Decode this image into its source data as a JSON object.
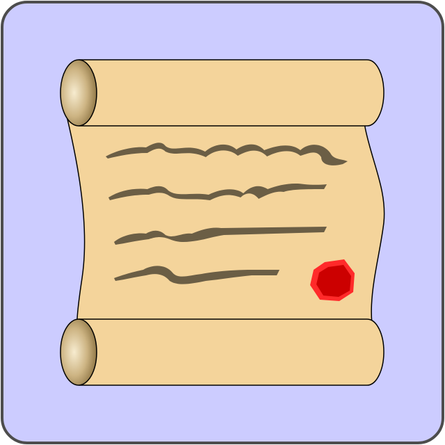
{
  "icon": {
    "name": "scroll-certificate-icon",
    "colors": {
      "background": "#ccccff",
      "border": "#4d4d4d",
      "parchment": "#f4d49b",
      "outline": "#000000",
      "script_ink": "#6b5e45",
      "roll_end_light": "#f7ecd0",
      "roll_end_dark": "#8a7140",
      "seal_outer": "#ff2a2a",
      "seal_inner": "#cc0000"
    },
    "script_line_count": 4
  }
}
